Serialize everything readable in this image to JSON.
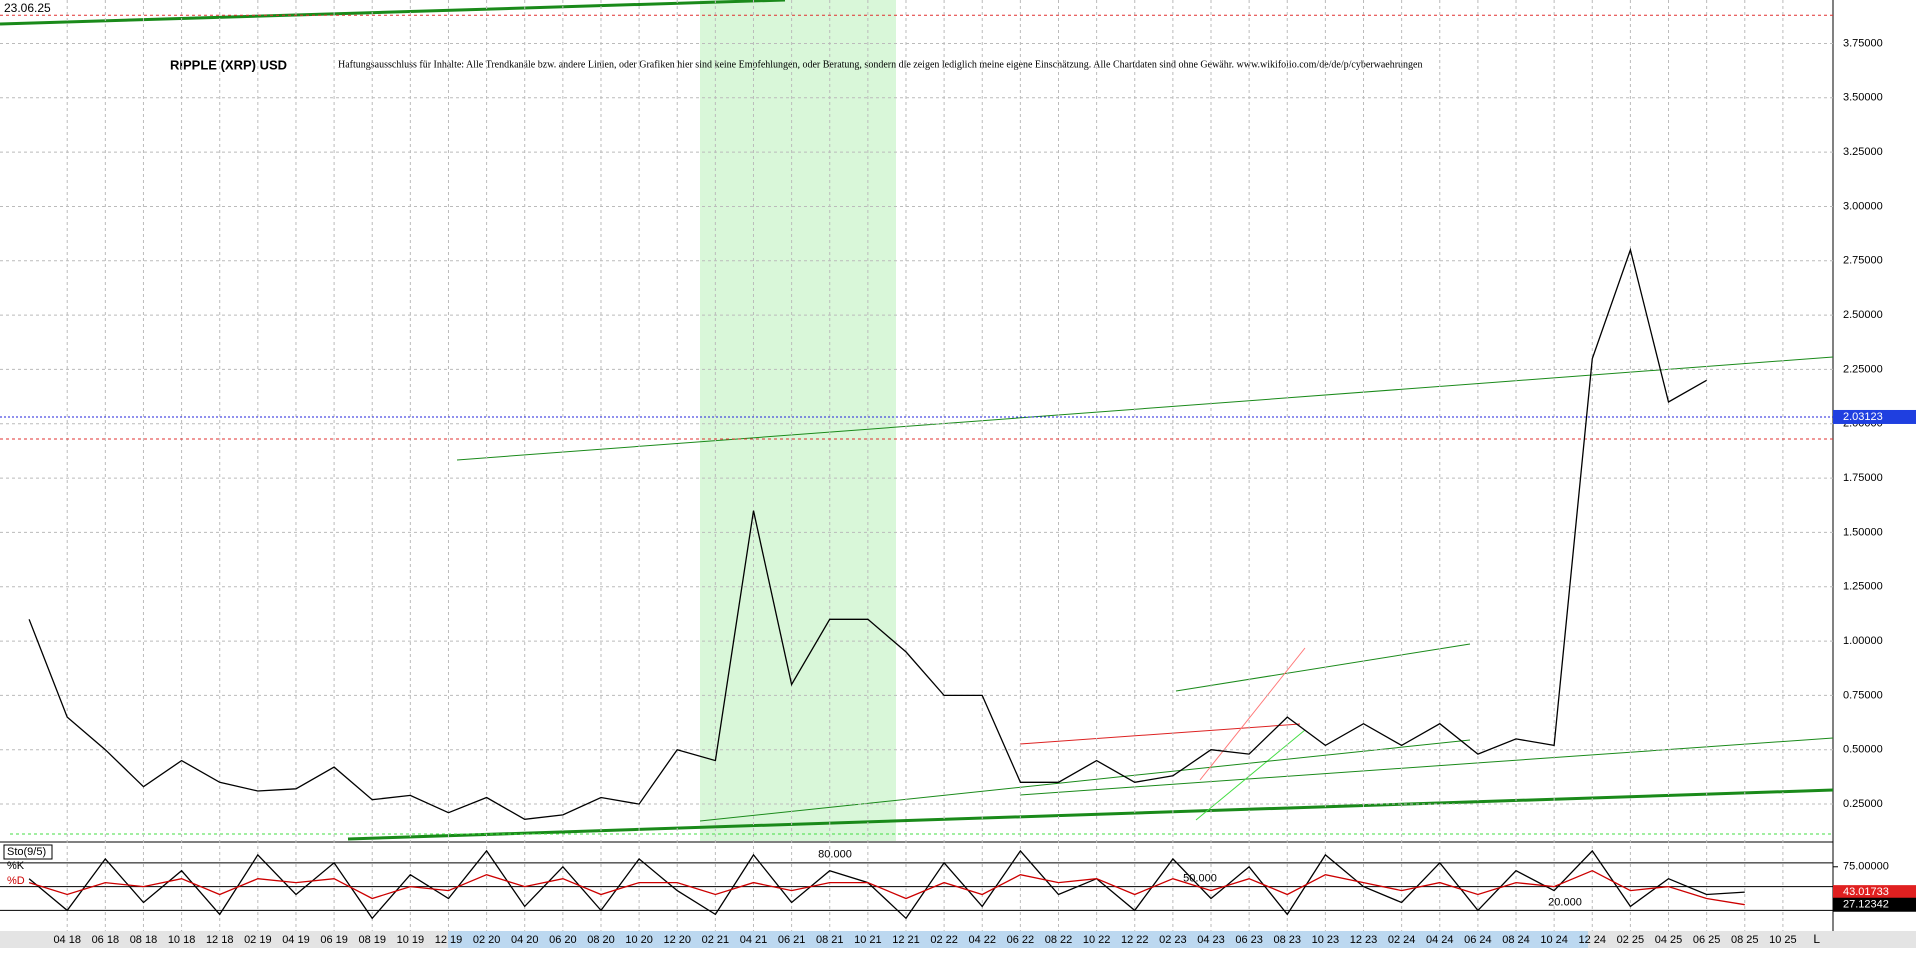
{
  "date": "23.06.25",
  "x_axis_end": "L",
  "chart_data": [
    {
      "type": "line",
      "title": "RIPPLE (XRP) USD",
      "subtitle": "Haftungsausschluss für Inhalte: Alle Trendkanäle bzw. andere Linien, oder Grafiken hier sind keine Empfehlungen, oder Beratung, sondern die zeigen lediglich meine eigene Einschätzung. Alle Chartdaten sind ohne Gewähr.  www.wikifolio.com/de/de/p/cyberwaehrungen",
      "categories": [
        null,
        "04 18",
        "06 18",
        "08 18",
        "10 18",
        "12 18",
        "02 19",
        "04 19",
        "06 19",
        "08 19",
        "10 19",
        "12 19",
        "02 20",
        "04 20",
        "06 20",
        "08 20",
        "10 20",
        "12 20",
        "02 21",
        "04 21",
        "06 21",
        "08 21",
        "10 21",
        "12 21",
        "02 22",
        "04 22",
        "06 22",
        "08 22",
        "10 22",
        "12 22",
        "02 23",
        "04 23",
        "06 23",
        "08 23",
        "10 23",
        "12 23",
        "02 24",
        "04 24",
        "06 24",
        "08 24",
        "10 24",
        "12 24",
        "02 25",
        "04 25",
        "06 25",
        "08 25",
        "10 25"
      ],
      "series": [
        {
          "name": "XRP",
          "color": "#000000",
          "values": [
            1.1,
            0.65,
            0.5,
            0.33,
            0.45,
            0.35,
            0.31,
            0.32,
            0.42,
            0.27,
            0.29,
            0.21,
            0.28,
            0.18,
            0.2,
            0.28,
            0.25,
            0.5,
            0.45,
            1.6,
            0.8,
            1.1,
            1.1,
            0.95,
            0.75,
            0.75,
            0.35,
            0.35,
            0.45,
            0.35,
            0.38,
            0.5,
            0.48,
            0.65,
            0.52,
            0.62,
            0.52,
            0.62,
            0.48,
            0.55,
            0.52,
            2.3,
            2.8,
            2.1,
            2.2,
            null,
            null
          ]
        }
      ],
      "current_price": 2.03123,
      "levels": [
        3.88,
        1.93
      ],
      "ylim": [
        0.08,
        3.95
      ],
      "yticks": [
        {
          "value": 0.25,
          "label": "0.25000"
        },
        {
          "value": 0.5,
          "label": "0.50000"
        },
        {
          "value": 0.75,
          "label": "0.75000"
        },
        {
          "value": 1.0,
          "label": "1.00000"
        },
        {
          "value": 1.25,
          "label": "1.25000"
        },
        {
          "value": 1.5,
          "label": "1.50000"
        },
        {
          "value": 1.75,
          "label": "1.75000"
        },
        {
          "value": 2.0,
          "label": "2.00000"
        },
        {
          "value": 2.25,
          "label": "2.25000"
        },
        {
          "value": 2.5,
          "label": "2.50000"
        },
        {
          "value": 2.75,
          "label": "2.75000"
        },
        {
          "value": 3.0,
          "label": "3.00000"
        },
        {
          "value": 3.25,
          "label": "3.25000"
        },
        {
          "value": 3.5,
          "label": "3.50000"
        },
        {
          "value": 3.75,
          "label": "3.75000"
        }
      ],
      "grid": true
    },
    {
      "type": "line",
      "title": "Sto(9/5)",
      "series": [
        {
          "name": "%K",
          "color": "#000000",
          "values": [
            60,
            20,
            85,
            30,
            70,
            15,
            90,
            40,
            80,
            10,
            65,
            35,
            95,
            25,
            75,
            20,
            85,
            45,
            15,
            90,
            30,
            70,
            55,
            10,
            80,
            25,
            95,
            40,
            60,
            20,
            85,
            35,
            75,
            15,
            90,
            50,
            30,
            80,
            20,
            70,
            45,
            95,
            25,
            60,
            40,
            43.01733,
            null
          ]
        },
        {
          "name": "%D",
          "color": "#cc0000",
          "values": [
            55,
            40,
            55,
            50,
            60,
            40,
            60,
            55,
            60,
            35,
            50,
            45,
            65,
            50,
            60,
            40,
            55,
            55,
            40,
            55,
            45,
            55,
            55,
            35,
            55,
            40,
            65,
            55,
            60,
            40,
            60,
            45,
            60,
            40,
            65,
            55,
            45,
            55,
            40,
            55,
            50,
            70,
            45,
            50,
            35,
            27.12342,
            null
          ]
        }
      ],
      "levels": [
        {
          "value": 80,
          "label": "80.000"
        },
        {
          "value": 50,
          "label": "50.000"
        },
        {
          "value": 20,
          "label": "20.000"
        }
      ],
      "ylim": [
        -6,
        105
      ],
      "yticks": [
        {
          "value": 75,
          "label": "75.00000"
        }
      ]
    }
  ]
}
